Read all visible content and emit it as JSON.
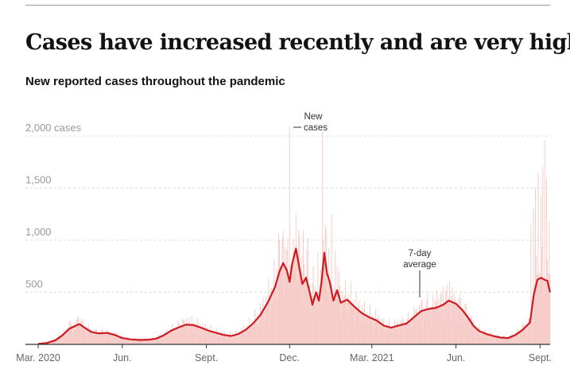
{
  "header": {
    "title": "Cases have increased recently and are very high.",
    "subtitle": "New reported cases throughout the pandemic"
  },
  "chart_data": {
    "type": "bar",
    "y_unit_suffix": " cases",
    "ylim": [
      0,
      2050
    ],
    "y_ticks": [
      {
        "value": 500,
        "label": "500"
      },
      {
        "value": 1000,
        "label": "1,000"
      },
      {
        "value": 1500,
        "label": "1,500"
      },
      {
        "value": 2000,
        "label": "2,000"
      }
    ],
    "x_range": [
      "2020-03-01",
      "2021-09-12"
    ],
    "x_ticks": [
      {
        "date": "2020-03-01",
        "label": "Mar. 2020"
      },
      {
        "date": "2020-06-01",
        "label": "Jun."
      },
      {
        "date": "2020-09-01",
        "label": "Sept."
      },
      {
        "date": "2020-12-01",
        "label": "Dec."
      },
      {
        "date": "2021-03-01",
        "label": "Mar. 2021"
      },
      {
        "date": "2021-06-01",
        "label": "Jun."
      },
      {
        "date": "2021-09-01",
        "label": "Sept."
      }
    ],
    "grid": true,
    "average_series": {
      "name": "7-day average",
      "points": [
        [
          "2020-03-01",
          5
        ],
        [
          "2020-03-10",
          12
        ],
        [
          "2020-03-20",
          40
        ],
        [
          "2020-03-28",
          90
        ],
        [
          "2020-04-04",
          150
        ],
        [
          "2020-04-10",
          175
        ],
        [
          "2020-04-15",
          195
        ],
        [
          "2020-04-20",
          165
        ],
        [
          "2020-04-28",
          120
        ],
        [
          "2020-05-06",
          105
        ],
        [
          "2020-05-15",
          110
        ],
        [
          "2020-05-24",
          90
        ],
        [
          "2020-06-01",
          60
        ],
        [
          "2020-06-10",
          48
        ],
        [
          "2020-06-20",
          42
        ],
        [
          "2020-06-30",
          45
        ],
        [
          "2020-07-08",
          55
        ],
        [
          "2020-07-16",
          85
        ],
        [
          "2020-07-24",
          130
        ],
        [
          "2020-08-01",
          160
        ],
        [
          "2020-08-10",
          190
        ],
        [
          "2020-08-18",
          185
        ],
        [
          "2020-08-26",
          160
        ],
        [
          "2020-09-04",
          130
        ],
        [
          "2020-09-12",
          110
        ],
        [
          "2020-09-20",
          90
        ],
        [
          "2020-09-28",
          80
        ],
        [
          "2020-10-06",
          100
        ],
        [
          "2020-10-14",
          140
        ],
        [
          "2020-10-22",
          200
        ],
        [
          "2020-10-30",
          280
        ],
        [
          "2020-11-07",
          400
        ],
        [
          "2020-11-15",
          550
        ],
        [
          "2020-11-20",
          700
        ],
        [
          "2020-11-24",
          780
        ],
        [
          "2020-11-28",
          710
        ],
        [
          "2020-12-01",
          600
        ],
        [
          "2020-12-04",
          780
        ],
        [
          "2020-12-08",
          920
        ],
        [
          "2020-12-12",
          720
        ],
        [
          "2020-12-15",
          580
        ],
        [
          "2020-12-19",
          640
        ],
        [
          "2020-12-23",
          500
        ],
        [
          "2020-12-26",
          380
        ],
        [
          "2020-12-30",
          500
        ],
        [
          "2021-01-02",
          420
        ],
        [
          "2021-01-05",
          600
        ],
        [
          "2021-01-08",
          880
        ],
        [
          "2021-01-11",
          680
        ],
        [
          "2021-01-14",
          600
        ],
        [
          "2021-01-18",
          420
        ],
        [
          "2021-01-22",
          520
        ],
        [
          "2021-01-26",
          400
        ],
        [
          "2021-02-02",
          430
        ],
        [
          "2021-02-10",
          360
        ],
        [
          "2021-02-18",
          300
        ],
        [
          "2021-02-26",
          260
        ],
        [
          "2021-03-06",
          230
        ],
        [
          "2021-03-14",
          180
        ],
        [
          "2021-03-22",
          160
        ],
        [
          "2021-03-30",
          180
        ],
        [
          "2021-04-08",
          200
        ],
        [
          "2021-04-16",
          260
        ],
        [
          "2021-04-24",
          320
        ],
        [
          "2021-05-02",
          340
        ],
        [
          "2021-05-10",
          350
        ],
        [
          "2021-05-18",
          380
        ],
        [
          "2021-05-24",
          420
        ],
        [
          "2021-06-01",
          390
        ],
        [
          "2021-06-08",
          330
        ],
        [
          "2021-06-14",
          260
        ],
        [
          "2021-06-20",
          180
        ],
        [
          "2021-06-26",
          130
        ],
        [
          "2021-07-04",
          100
        ],
        [
          "2021-07-12",
          80
        ],
        [
          "2021-07-20",
          65
        ],
        [
          "2021-07-28",
          60
        ],
        [
          "2021-08-05",
          90
        ],
        [
          "2021-08-13",
          140
        ],
        [
          "2021-08-21",
          210
        ],
        [
          "2021-08-25",
          470
        ],
        [
          "2021-08-29",
          620
        ],
        [
          "2021-09-02",
          640
        ],
        [
          "2021-09-06",
          620
        ],
        [
          "2021-09-09",
          610
        ],
        [
          "2021-09-12",
          500
        ]
      ]
    },
    "daily_series": {
      "name": "New cases",
      "spikes": [
        [
          "2020-04-05",
          230
        ],
        [
          "2020-04-14",
          270
        ],
        [
          "2020-04-17",
          240
        ],
        [
          "2020-08-06",
          250
        ],
        [
          "2020-08-13",
          260
        ],
        [
          "2020-11-19",
          1060
        ],
        [
          "2020-11-24",
          1090
        ],
        [
          "2020-11-28",
          910
        ],
        [
          "2020-12-01",
          2090
        ],
        [
          "2020-12-05",
          1010
        ],
        [
          "2020-12-08",
          1250
        ],
        [
          "2020-12-12",
          1040
        ],
        [
          "2020-12-16",
          1100
        ],
        [
          "2020-12-21",
          1020
        ],
        [
          "2020-12-27",
          760
        ],
        [
          "2021-01-01",
          880
        ],
        [
          "2021-01-06",
          2050
        ],
        [
          "2021-01-09",
          1150
        ],
        [
          "2021-01-13",
          920
        ],
        [
          "2021-01-16",
          1250
        ],
        [
          "2021-01-20",
          900
        ],
        [
          "2021-01-24",
          700
        ],
        [
          "2021-05-11",
          520
        ],
        [
          "2021-05-18",
          560
        ],
        [
          "2021-05-25",
          600
        ],
        [
          "2021-08-22",
          1150
        ],
        [
          "2021-08-25",
          1300
        ],
        [
          "2021-08-27",
          1500
        ],
        [
          "2021-08-30",
          1650
        ],
        [
          "2021-09-02",
          1420
        ],
        [
          "2021-09-04",
          1700
        ],
        [
          "2021-09-06",
          1960
        ],
        [
          "2021-09-08",
          1600
        ],
        [
          "2021-09-11",
          1180
        ]
      ]
    },
    "annotations": [
      {
        "text_lines": [
          "New",
          "cases"
        ],
        "target": "daily"
      },
      {
        "text_lines": [
          "7-day",
          "average"
        ],
        "target": "average"
      }
    ],
    "colors": {
      "bar": "#f6c9c5",
      "line": "#cf1a21",
      "grid": "#dddddd",
      "axis": "#333333",
      "tick_text": "#999999",
      "x_tick_text": "#666666"
    }
  }
}
